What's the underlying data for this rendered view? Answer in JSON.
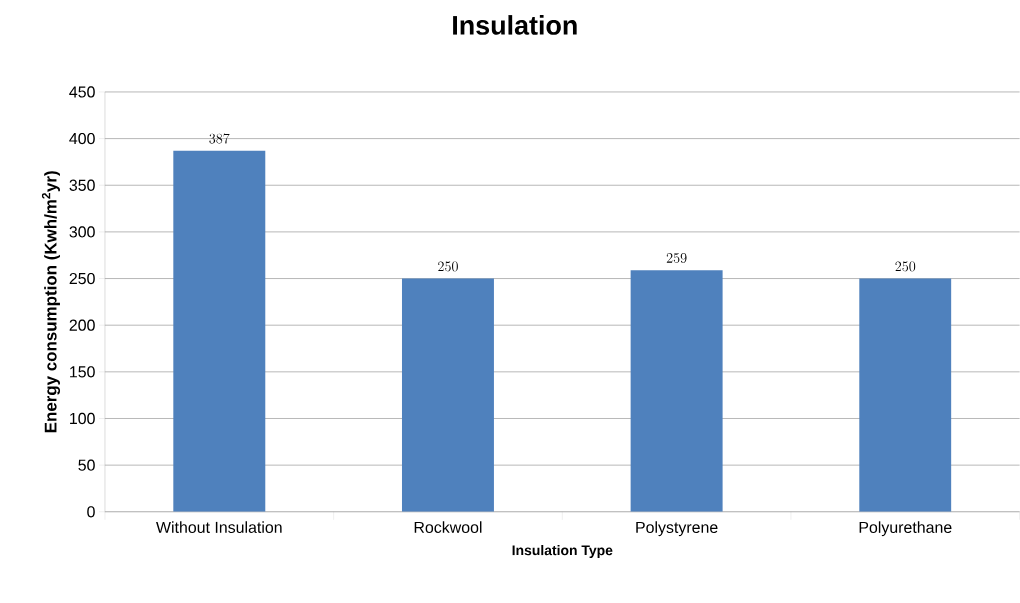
{
  "chart_data": {
    "type": "bar",
    "title": "Insulation",
    "xlabel": "Insulation Type",
    "ylabel": "Energy consumption (Kwh/m$^{2}$yr)",
    "categories": [
      "Without Insulation",
      "Rockwool",
      "Polystyrene",
      "Polyurethane"
    ],
    "values": [
      387,
      250,
      259,
      250
    ],
    "color": "#4f81bd",
    "ylim": [
      0,
      450
    ],
    "yticks": [
      0,
      50,
      100,
      150,
      200,
      250,
      300,
      350,
      400,
      450
    ],
    "grid": "y",
    "data_labels": true
  }
}
